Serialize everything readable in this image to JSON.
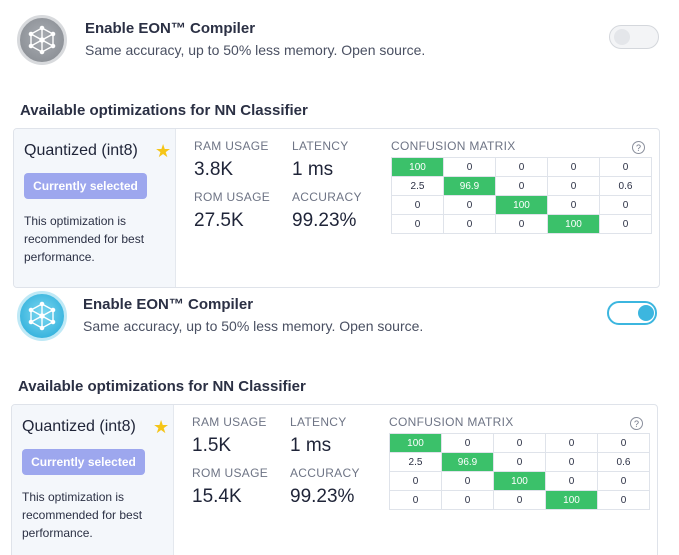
{
  "colors": {
    "accent_blue": "#3cb6df",
    "selected_purple": "#9da7ee",
    "matrix_green": "#3bc16a",
    "star": "#f5c518"
  },
  "sections": [
    {
      "eon": {
        "title": "Enable EON™ Compiler",
        "subtitle": "Same accuracy, up to 50% less memory. Open source.",
        "toggle_on": false,
        "icon": "neural-network-icon"
      },
      "available_title": "Available optimizations for NN Classifier",
      "card": {
        "optimization_name": "Quantized (int8)",
        "star_icon": "star-icon",
        "selected_label": "Currently selected",
        "description": "This optimization is recommended for best performance.",
        "ram_label": "RAM USAGE",
        "ram_value": "3.8K",
        "latency_label": "LATENCY",
        "latency_value": "1 ms",
        "rom_label": "ROM USAGE",
        "rom_value": "27.5K",
        "accuracy_label": "ACCURACY",
        "accuracy_value": "99.23%",
        "confusion_label": "CONFUSION MATRIX",
        "help_icon": "?",
        "matrix": [
          [
            "100",
            "0",
            "0",
            "0",
            "0"
          ],
          [
            "2.5",
            "96.9",
            "0",
            "0",
            "0.6"
          ],
          [
            "0",
            "0",
            "100",
            "0",
            "0"
          ],
          [
            "0",
            "0",
            "0",
            "100",
            "0"
          ]
        ]
      }
    },
    {
      "eon": {
        "title": "Enable EON™ Compiler",
        "subtitle": "Same accuracy, up to 50% less memory. Open source.",
        "toggle_on": true,
        "icon": "neural-network-icon"
      },
      "available_title": "Available optimizations for NN Classifier",
      "card": {
        "optimization_name": "Quantized (int8)",
        "star_icon": "star-icon",
        "selected_label": "Currently selected",
        "description": "This optimization is recommended for best performance.",
        "ram_label": "RAM USAGE",
        "ram_value": "1.5K",
        "latency_label": "LATENCY",
        "latency_value": "1 ms",
        "rom_label": "ROM USAGE",
        "rom_value": "15.4K",
        "accuracy_label": "ACCURACY",
        "accuracy_value": "99.23%",
        "confusion_label": "CONFUSION MATRIX",
        "help_icon": "?",
        "matrix": [
          [
            "100",
            "0",
            "0",
            "0",
            "0"
          ],
          [
            "2.5",
            "96.9",
            "0",
            "0",
            "0.6"
          ],
          [
            "0",
            "0",
            "100",
            "0",
            "0"
          ],
          [
            "0",
            "0",
            "0",
            "100",
            "0"
          ]
        ]
      }
    }
  ]
}
